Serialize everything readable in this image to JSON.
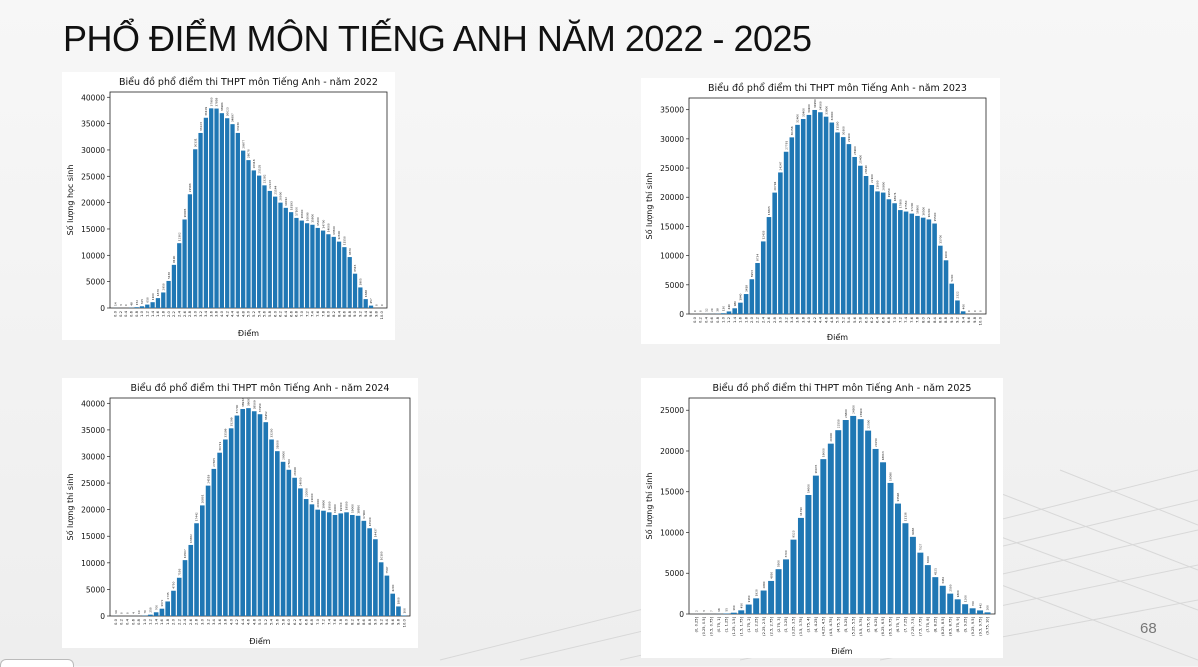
{
  "slide": {
    "title": "PHỔ ĐIỂM MÔN TIẾNG ANH NĂM 2022 - 2025",
    "page_number": "68"
  },
  "chart_data": [
    {
      "type": "bar",
      "title": "Biểu đồ phổ điểm thi THPT môn Tiếng Anh - năm 2022",
      "xlabel": "Điểm",
      "ylabel": "Số lượng học sinh",
      "ylim": [
        0,
        41000
      ],
      "yticks": [
        0,
        5000,
        10000,
        15000,
        20000,
        25000,
        30000,
        35000,
        40000
      ],
      "categories": [
        "0.0",
        "0.2",
        "0.4",
        "0.6",
        "0.8",
        "1.0",
        "1.2",
        "1.4",
        "1.6",
        "1.8",
        "2.0",
        "2.2",
        "2.4",
        "2.6",
        "2.8",
        "3.0",
        "3.2",
        "3.4",
        "3.6",
        "3.8",
        "4.0",
        "4.2",
        "4.4",
        "4.6",
        "4.8",
        "5.0",
        "5.2",
        "5.4",
        "5.6",
        "5.8",
        "6.0",
        "6.2",
        "6.4",
        "6.6",
        "6.8",
        "7.0",
        "7.2",
        "7.4",
        "7.6",
        "7.8",
        "8.0",
        "8.2",
        "8.4",
        "8.6",
        "8.8",
        "9.0",
        "9.2",
        "9.4",
        "9.6",
        "9.8",
        "10.0"
      ],
      "values": [
        14,
        3,
        0,
        48,
        152,
        325,
        650,
        1100,
        1876,
        2950,
        5136,
        8190,
        12302,
        16805,
        21586,
        30131,
        33223,
        36109,
        37900,
        37858,
        36981,
        36023,
        34897,
        33230,
        29877,
        28070,
        26118,
        25135,
        23282,
        22223,
        21144,
        20000,
        19012,
        18193,
        17100,
        16600,
        16090,
        15800,
        15200,
        14700,
        14000,
        13500,
        12600,
        11550,
        9670,
        6515,
        3905,
        1688,
        457,
        0,
        0
      ]
    },
    {
      "type": "bar",
      "title": "Biểu đồ phổ điểm thi THPT môn Tiếng Anh - năm 2023",
      "xlabel": "Điểm",
      "ylabel": "Số lượng thí sinh",
      "ylim": [
        0,
        37000
      ],
      "yticks": [
        0,
        5000,
        10000,
        15000,
        20000,
        25000,
        30000,
        35000
      ],
      "categories": [
        "0.0",
        "0.2",
        "0.4",
        "0.6",
        "0.8",
        "1.0",
        "1.2",
        "1.4",
        "1.6",
        "1.8",
        "2.0",
        "2.2",
        "2.4",
        "2.6",
        "2.8",
        "3.0",
        "3.2",
        "3.4",
        "3.6",
        "3.8",
        "4.0",
        "4.2",
        "4.4",
        "4.6",
        "4.8",
        "5.0",
        "5.2",
        "5.4",
        "5.6",
        "5.8",
        "6.0",
        "6.2",
        "6.4",
        "6.6",
        "6.8",
        "7.0",
        "7.2",
        "7.4",
        "7.6",
        "7.8",
        "8.0",
        "8.2",
        "8.4",
        "8.6",
        "8.8",
        "9.0",
        "9.2",
        "9.4",
        "9.6",
        "9.8",
        "10.0"
      ],
      "values": [
        0,
        0,
        12,
        20,
        38,
        130,
        440,
        980,
        1940,
        3418,
        5953,
        8734,
        12433,
        16605,
        20794,
        24247,
        27791,
        30258,
        32400,
        33400,
        34100,
        34950,
        34560,
        33800,
        32800,
        31100,
        30300,
        29100,
        26900,
        25400,
        23640,
        22100,
        21000,
        20800,
        19650,
        18971,
        17800,
        17550,
        17200,
        16800,
        16500,
        16200,
        15500,
        11700,
        9200,
        5200,
        2322,
        460,
        0,
        0,
        0
      ]
    },
    {
      "type": "bar",
      "title": "Biểu đồ phổ điểm thi THPT môn Tiếng Anh - năm 2024",
      "xlabel": "Điểm",
      "ylabel": "Số lượng thí sinh",
      "ylim": [
        0,
        41000
      ],
      "yticks": [
        0,
        5000,
        10000,
        15000,
        20000,
        25000,
        30000,
        35000,
        40000
      ],
      "categories": [
        "0.0",
        "0.2",
        "0.4",
        "0.6",
        "0.8",
        "1.0",
        "1.2",
        "1.4",
        "1.6",
        "1.8",
        "2.0",
        "2.2",
        "2.4",
        "2.6",
        "2.8",
        "3.0",
        "3.2",
        "3.4",
        "3.6",
        "3.8",
        "4.0",
        "4.2",
        "4.4",
        "4.6",
        "4.8",
        "5.0",
        "5.2",
        "5.4",
        "5.6",
        "5.8",
        "6.0",
        "6.2",
        "6.4",
        "6.6",
        "6.8",
        "7.0",
        "7.2",
        "7.4",
        "7.6",
        "7.8",
        "8.0",
        "8.2",
        "8.4",
        "8.6",
        "8.8",
        "9.0",
        "9.2",
        "9.4",
        "9.6",
        "9.8",
        "10.0"
      ],
      "values": [
        14,
        0,
        0,
        4,
        10,
        70,
        250,
        700,
        1372,
        2735,
        4750,
        7193,
        10507,
        13362,
        17442,
        20801,
        24519,
        27665,
        30711,
        33199,
        35299,
        37700,
        38932,
        39091,
        38509,
        37950,
        36452,
        33200,
        31000,
        29000,
        27500,
        26000,
        24000,
        22000,
        21000,
        20000,
        19800,
        19500,
        19000,
        19300,
        19500,
        19000,
        18850,
        17900,
        16500,
        14437,
        10100,
        7597,
        4200,
        1800,
        100
      ]
    },
    {
      "type": "bar",
      "title": "Biểu đồ phổ điểm thi THPT môn Tiếng Anh - năm 2025",
      "xlabel": "Điểm",
      "ylabel": "Số lượng thí sinh",
      "ylim": [
        0,
        26500
      ],
      "yticks": [
        0,
        5000,
        10000,
        15000,
        20000,
        25000
      ],
      "categories": [
        "(0, 0.25]",
        "(0.25, 0.5]",
        "(0.5, 0.75]",
        "(0.75, 1]",
        "(1, 1.25]",
        "(1.25, 1.5]",
        "(1.5, 1.75]",
        "(1.75, 2]",
        "(2, 2.25]",
        "(2.25, 2.5]",
        "(2.5, 2.75]",
        "(2.75, 3]",
        "(3, 3.25]",
        "(3.25, 3.5]",
        "(3.5, 3.75]",
        "(3.75, 4]",
        "(4, 4.25]",
        "(4.25, 4.5]",
        "(4.5, 4.75]",
        "(4.75, 5]",
        "(5, 5.25]",
        "(5.25, 5.5]",
        "(5.5, 5.75]",
        "(5.75, 6]",
        "(6, 6.25]",
        "(6.25, 6.5]",
        "(6.5, 6.75]",
        "(6.75, 7]",
        "(7, 7.25]",
        "(7.25, 7.5]",
        "(7.5, 7.75]",
        "(7.75, 8]",
        "(8, 8.25]",
        "(8.25, 8.5]",
        "(8.5, 8.75]",
        "(8.75, 9]",
        "(9, 9.25]",
        "(9.25, 9.5]",
        "(9.5, 9.75]",
        "(9.75, 10]"
      ],
      "values": [
        2,
        3,
        7,
        18,
        55,
        160,
        450,
        1160,
        1920,
        2880,
        4056,
        5500,
        6700,
        9123,
        11790,
        14600,
        16976,
        19000,
        20900,
        22550,
        23800,
        24300,
        23900,
        22500,
        20250,
        18613,
        16080,
        13546,
        11136,
        9466,
        7527,
        6000,
        4521,
        3462,
        2500,
        1800,
        1200,
        700,
        442,
        200
      ]
    }
  ]
}
